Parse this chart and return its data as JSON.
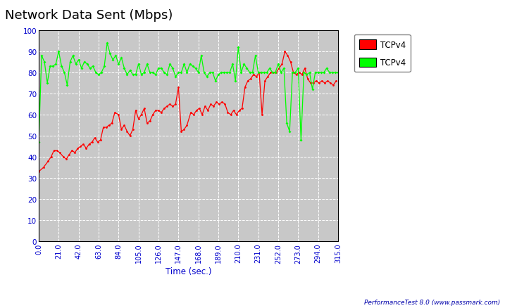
{
  "title": "Network Data Sent (Mbps)",
  "xlabel": "Time (sec.)",
  "watermark": "PerformanceTest 8.0 (www.passmark.com)",
  "legend": [
    {
      "label": "TCPv4",
      "color": "#ff0000"
    },
    {
      "label": "TCPv4",
      "color": "#00ff00"
    }
  ],
  "xlim": [
    0,
    315
  ],
  "ylim": [
    0,
    100
  ],
  "xticks": [
    0.0,
    21.0,
    42.0,
    63.0,
    84.0,
    105.0,
    126.0,
    147.0,
    168.0,
    189.0,
    210.0,
    231.0,
    252.0,
    273.0,
    294.0,
    315.0
  ],
  "yticks": [
    0,
    10,
    20,
    30,
    40,
    50,
    60,
    70,
    80,
    90,
    100
  ],
  "bg_color": "#c8c8c8",
  "outer_bg_color": "#ffffff",
  "grid_color": "#ffffff",
  "title_fontsize": 13,
  "red_x": [
    0,
    5,
    10,
    13,
    16,
    19,
    22,
    26,
    29,
    32,
    35,
    38,
    41,
    44,
    47,
    50,
    53,
    56,
    59,
    62,
    65,
    68,
    71,
    74,
    77,
    80,
    84,
    87,
    90,
    93,
    96,
    99,
    102,
    105,
    108,
    111,
    114,
    117,
    120,
    123,
    126,
    129,
    132,
    135,
    138,
    141,
    144,
    147,
    150,
    153,
    156,
    160,
    163,
    166,
    169,
    172,
    175,
    178,
    181,
    184,
    187,
    190,
    193,
    196,
    199,
    202,
    205,
    208,
    211,
    214,
    217,
    220,
    223,
    226,
    229,
    232,
    235,
    238,
    241,
    244,
    247,
    250,
    253,
    256,
    259,
    262,
    265,
    268,
    271,
    274,
    277,
    280,
    283,
    286,
    289,
    292,
    295,
    298,
    301,
    304,
    307,
    310,
    313
  ],
  "red_y": [
    33,
    35,
    38,
    40,
    43,
    43,
    42,
    40,
    39,
    41,
    43,
    42,
    44,
    45,
    46,
    44,
    46,
    47,
    49,
    47,
    48,
    54,
    54,
    55,
    56,
    61,
    60,
    53,
    55,
    52,
    50,
    53,
    62,
    58,
    60,
    63,
    56,
    57,
    60,
    62,
    62,
    61,
    63,
    64,
    65,
    64,
    65,
    73,
    52,
    53,
    55,
    61,
    60,
    62,
    63,
    60,
    64,
    62,
    65,
    64,
    66,
    65,
    66,
    65,
    61,
    60,
    62,
    60,
    62,
    63,
    73,
    76,
    77,
    79,
    78,
    80,
    60,
    76,
    78,
    80,
    80,
    80,
    82,
    84,
    90,
    88,
    85,
    80,
    79,
    80,
    79,
    82,
    77,
    75,
    75,
    76,
    75,
    76,
    75,
    76,
    75,
    74,
    76
  ],
  "green_x": [
    0,
    3,
    6,
    9,
    12,
    15,
    18,
    21,
    24,
    27,
    30,
    33,
    36,
    39,
    42,
    45,
    48,
    51,
    54,
    57,
    60,
    63,
    66,
    69,
    72,
    75,
    78,
    81,
    84,
    87,
    90,
    93,
    96,
    99,
    102,
    105,
    108,
    111,
    114,
    117,
    120,
    123,
    126,
    129,
    132,
    135,
    138,
    141,
    144,
    147,
    150,
    153,
    156,
    159,
    162,
    165,
    168,
    171,
    174,
    177,
    180,
    183,
    186,
    189,
    192,
    195,
    198,
    201,
    204,
    207,
    210,
    213,
    216,
    219,
    222,
    225,
    228,
    231,
    234,
    237,
    240,
    243,
    246,
    249,
    252,
    255,
    258,
    261,
    264,
    267,
    270,
    273,
    276,
    279,
    282,
    285,
    288,
    291,
    294,
    297,
    300,
    303,
    306,
    309,
    312,
    315
  ],
  "green_y": [
    47,
    88,
    85,
    75,
    83,
    83,
    84,
    90,
    83,
    80,
    74,
    85,
    88,
    84,
    86,
    82,
    85,
    84,
    82,
    83,
    80,
    79,
    80,
    83,
    94,
    89,
    86,
    88,
    84,
    87,
    82,
    79,
    81,
    79,
    79,
    84,
    79,
    80,
    84,
    80,
    80,
    79,
    82,
    82,
    80,
    79,
    84,
    82,
    78,
    80,
    80,
    84,
    80,
    84,
    83,
    82,
    80,
    88,
    80,
    78,
    80,
    80,
    76,
    79,
    80,
    80,
    80,
    80,
    84,
    76,
    92,
    80,
    84,
    82,
    80,
    80,
    88,
    80,
    80,
    80,
    80,
    82,
    80,
    80,
    84,
    80,
    82,
    56,
    52,
    80,
    80,
    82,
    48,
    80,
    79,
    80,
    72,
    80,
    80,
    80,
    80,
    82,
    80,
    80,
    80,
    80
  ]
}
